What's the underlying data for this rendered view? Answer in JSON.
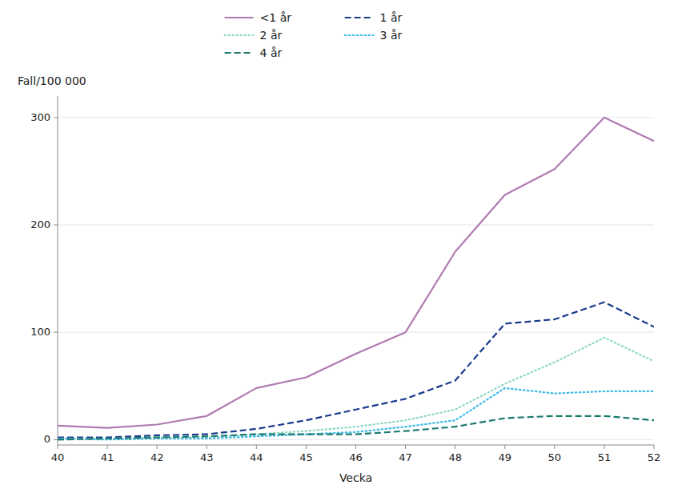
{
  "chart_data": {
    "type": "line",
    "x": [
      40,
      41,
      42,
      43,
      44,
      45,
      46,
      47,
      48,
      49,
      50,
      51,
      52
    ],
    "series": [
      {
        "name": "<1 år",
        "color": "#b07ab0",
        "line_style": "solid",
        "values": [
          13,
          11,
          14,
          22,
          48,
          58,
          80,
          100,
          175,
          228,
          252,
          300,
          278
        ]
      },
      {
        "name": "1 år",
        "color": "#1a3a8c",
        "line_style": "dashed",
        "values": [
          2,
          2,
          4,
          5,
          10,
          18,
          28,
          38,
          55,
          108,
          112,
          128,
          105
        ]
      },
      {
        "name": "2 år",
        "color": "#90d8c8",
        "line_style": "dotted",
        "values": [
          1,
          1,
          2,
          2,
          5,
          8,
          12,
          18,
          28,
          52,
          72,
          95,
          73
        ]
      },
      {
        "name": "3 år",
        "color": "#3ab8e8",
        "line_style": "dotted",
        "values": [
          1,
          0,
          1,
          1,
          3,
          5,
          7,
          12,
          18,
          48,
          43,
          45,
          45
        ]
      },
      {
        "name": "4 år",
        "color": "#1a7a6e",
        "line_style": "dashed",
        "values": [
          0,
          1,
          2,
          3,
          5,
          5,
          5,
          8,
          12,
          20,
          22,
          22,
          18
        ]
      }
    ],
    "xlabel": "Vecka",
    "ylabel": "Fall/100 000",
    "xlim": [
      40,
      52
    ],
    "xticks": [
      40,
      41,
      42,
      43,
      44,
      45,
      46,
      47,
      48,
      49,
      50,
      51,
      52
    ],
    "ylim": [
      -5,
      320
    ],
    "yticks": [
      0,
      100,
      200,
      300
    ],
    "grid": true,
    "legend": "top"
  }
}
